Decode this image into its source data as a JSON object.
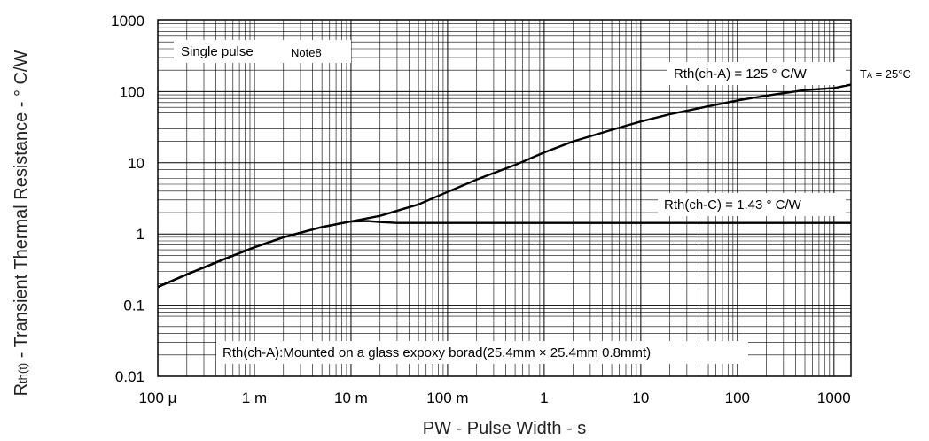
{
  "chart_data": {
    "type": "line",
    "x_scale": "log",
    "y_scale": "log",
    "xlim": [
      0.0001,
      1500
    ],
    "ylim": [
      0.01,
      1000
    ],
    "grid": true,
    "xlabel": "PW - Pulse Width - s",
    "ylabel_main": "R",
    "ylabel_sub": "th(t)",
    "ylabel_rest": " - Transient Thermal Resistance - ° C/W",
    "x_ticks": [
      {
        "value": 0.0001,
        "label": "100 μ"
      },
      {
        "value": 0.001,
        "label": "1 m"
      },
      {
        "value": 0.01,
        "label": "10 m"
      },
      {
        "value": 0.1,
        "label": "100 m"
      },
      {
        "value": 1,
        "label": "1"
      },
      {
        "value": 10,
        "label": "10"
      },
      {
        "value": 100,
        "label": "100"
      },
      {
        "value": 1000,
        "label": "1000"
      }
    ],
    "y_ticks": [
      {
        "value": 0.01,
        "label": "0.01"
      },
      {
        "value": 0.1,
        "label": "0.1"
      },
      {
        "value": 1,
        "label": "1"
      },
      {
        "value": 10,
        "label": "10"
      },
      {
        "value": 100,
        "label": "100"
      },
      {
        "value": 1000,
        "label": "1000"
      }
    ],
    "series": [
      {
        "x": [
          0.0001,
          0.0002,
          0.0005,
          0.001,
          0.002,
          0.005,
          0.01,
          0.02,
          0.05,
          0.1,
          0.2,
          0.5,
          1,
          2,
          5,
          10,
          20,
          50,
          100,
          200,
          500,
          1000,
          1500
        ],
        "y": [
          0.18,
          0.27,
          0.45,
          0.65,
          0.9,
          1.25,
          1.5,
          1.8,
          2.6,
          3.9,
          5.8,
          9.3,
          14,
          20,
          29,
          38,
          48,
          62,
          75,
          88,
          105,
          112,
          125
        ]
      },
      {
        "x": [
          0.0001,
          0.0002,
          0.0005,
          0.001,
          0.002,
          0.005,
          0.01,
          0.015,
          0.02,
          0.03,
          0.05,
          0.1,
          1,
          10,
          100,
          1000,
          1500
        ],
        "y": [
          0.18,
          0.27,
          0.45,
          0.65,
          0.9,
          1.25,
          1.5,
          1.52,
          1.47,
          1.43,
          1.43,
          1.43,
          1.43,
          1.43,
          1.43,
          1.43,
          1.43
        ]
      }
    ],
    "annotations": {
      "single_pulse": "Single pulse",
      "note": "Note8",
      "rth_ca": "Rth(ch-A) = 125 °  C/W",
      "ta": "T",
      "ta_sub": "A",
      "ta_rest": " = 25°C",
      "rth_cc": "Rth(ch-C) = 1.43 °  C/W",
      "mounting": "Rth(ch-A):Mounted on a glass expoxy borad(25.4mm × 25.4mm 0.8mmt)"
    }
  }
}
